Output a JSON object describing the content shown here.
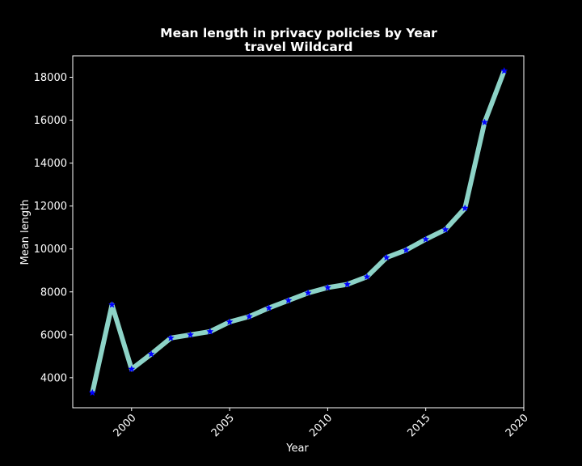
{
  "chart_data": {
    "type": "line",
    "title_line1": "Mean length in privacy policies by Year",
    "title_line2": "travel Wildcard",
    "xlabel": "Year",
    "ylabel": "Mean length",
    "xlim": [
      1997,
      2020
    ],
    "ylim": [
      2600,
      19000
    ],
    "xticks": [
      2000,
      2005,
      2010,
      2015,
      2020
    ],
    "yticks": [
      4000,
      6000,
      8000,
      10000,
      12000,
      14000,
      16000,
      18000
    ],
    "grid": false,
    "series": [
      {
        "x": [
          1998,
          1999,
          2000,
          2001,
          2002,
          2003,
          2004,
          2005,
          2006,
          2007,
          2008,
          2009,
          2010,
          2011,
          2012,
          2013,
          2014,
          2015,
          2016,
          2017,
          2018,
          2019
        ],
        "values": [
          3300,
          7400,
          4400,
          5100,
          5850,
          6000,
          6150,
          6600,
          6850,
          7250,
          7600,
          7950,
          8200,
          8350,
          8700,
          9600,
          9950,
          10450,
          10900,
          11900,
          15900,
          18300
        ]
      }
    ],
    "colors": {
      "background": "#000000",
      "line": "#8dd3c7",
      "marker": "#0000ff",
      "axis": "#ffffff",
      "text": "#ffffff"
    }
  }
}
